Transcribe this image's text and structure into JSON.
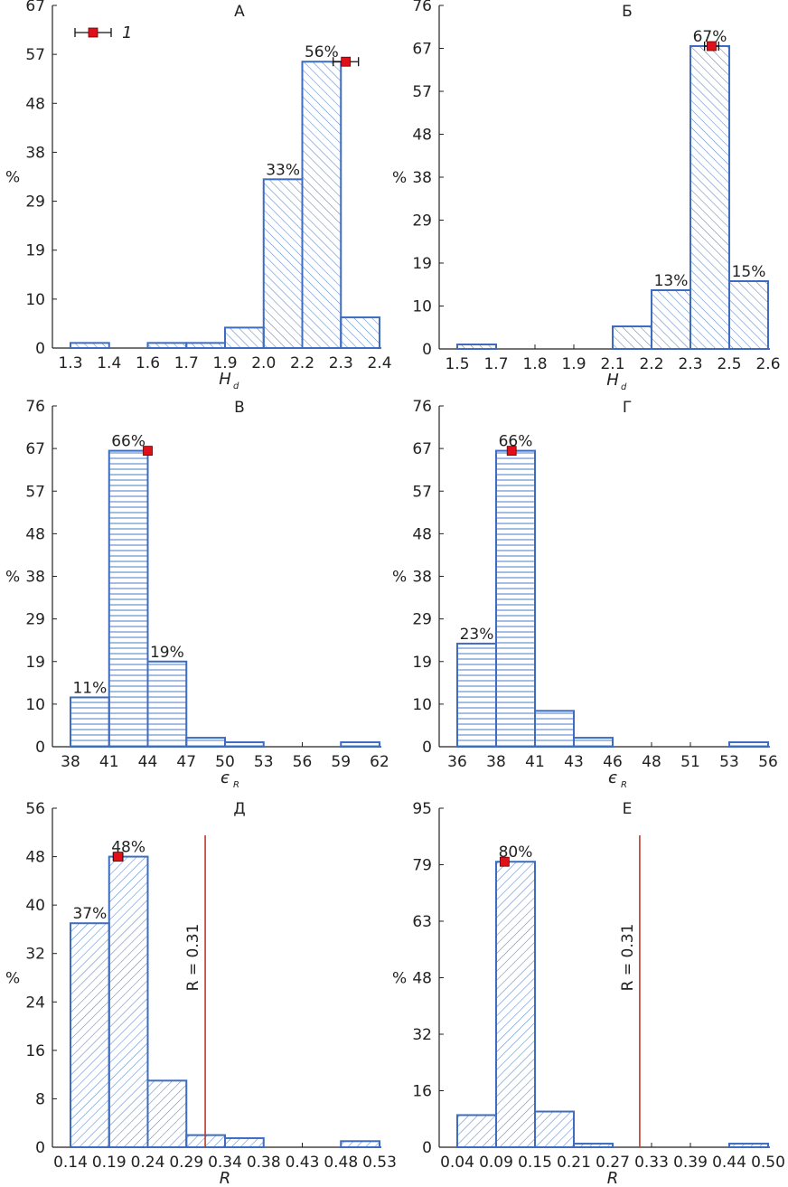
{
  "chart_data": [
    {
      "type": "bar",
      "title": "А",
      "ylabel": "%",
      "xlabel": "H",
      "xlabel_sub": "d",
      "yticks": [
        "0",
        "10",
        "19",
        "29",
        "38",
        "48",
        "57",
        "67"
      ],
      "ylim": [
        0,
        67
      ],
      "xticks": [
        "1.3",
        "1.4",
        "1.6",
        "1.7",
        "1.9",
        "2.0",
        "2.2",
        "2.3",
        "2.4"
      ],
      "values": [
        1,
        0,
        1,
        1,
        4,
        33,
        56,
        6
      ],
      "value_labels": [
        "",
        "",
        "",
        "",
        "",
        "33%",
        "56%",
        ""
      ],
      "pattern": "diag",
      "marker": {
        "x": 2.28,
        "y": 56,
        "xerr": 0.045
      },
      "legend": {
        "label": "1"
      }
    },
    {
      "type": "bar",
      "title": "Б",
      "ylabel": "%",
      "xlabel": "H",
      "xlabel_sub": "d",
      "yticks": [
        "0",
        "10",
        "19",
        "29",
        "38",
        "48",
        "57",
        "67",
        "76"
      ],
      "ylim": [
        0,
        76
      ],
      "xticks": [
        "1.5",
        "1.7",
        "1.8",
        "1.9",
        "2.1",
        "2.2",
        "2.3",
        "2.5",
        "2.6"
      ],
      "values": [
        1,
        0,
        0,
        0,
        5,
        13,
        67,
        15
      ],
      "value_labels": [
        "",
        "",
        "",
        "",
        "",
        "13%",
        "67%",
        "15%"
      ],
      "pattern": "diag",
      "marker": {
        "x": 2.4,
        "y": 67,
        "xerr": 0.025
      }
    },
    {
      "type": "bar",
      "title": "В",
      "ylabel": "%",
      "xlabel": "є",
      "xlabel_sub": "R",
      "yticks": [
        "0",
        "10",
        "19",
        "29",
        "38",
        "48",
        "57",
        "67",
        "76"
      ],
      "ylim": [
        0,
        76
      ],
      "xticks": [
        "38",
        "41",
        "44",
        "47",
        "50",
        "53",
        "56",
        "59",
        "62"
      ],
      "values": [
        11,
        66,
        19,
        2,
        1,
        0,
        0,
        1
      ],
      "value_labels": [
        "11%",
        "66%",
        "19%",
        "",
        "",
        "",
        "",
        ""
      ],
      "pattern": "horiz",
      "marker": {
        "x": 44,
        "y": 66,
        "xerr": 0.3
      }
    },
    {
      "type": "bar",
      "title": "Г",
      "ylabel": "%",
      "xlabel": "є",
      "xlabel_sub": "R",
      "yticks": [
        "0",
        "10",
        "19",
        "29",
        "38",
        "48",
        "57",
        "67",
        "76"
      ],
      "ylim": [
        0,
        76
      ],
      "xticks": [
        "36",
        "38",
        "41",
        "43",
        "46",
        "48",
        "51",
        "53",
        "56"
      ],
      "values": [
        23,
        66,
        8,
        2,
        0,
        0,
        0,
        1
      ],
      "value_labels": [
        "23%",
        "66%",
        "",
        "",
        "",
        "",
        "",
        ""
      ],
      "pattern": "horiz",
      "marker": {
        "x": 39.5,
        "y": 66,
        "xerr": 0.2
      }
    },
    {
      "type": "bar",
      "title": "Д",
      "ylabel": "%",
      "xlabel": "R",
      "yticks": [
        "0",
        "8",
        "16",
        "24",
        "32",
        "40",
        "48",
        "56"
      ],
      "ylim": [
        0,
        56
      ],
      "xticks": [
        "0.14",
        "0.19",
        "0.24",
        "0.29",
        "0.34",
        "0.38",
        "0.43",
        "0.48",
        "0.53"
      ],
      "values": [
        37,
        48,
        11,
        2,
        1.5,
        0,
        0,
        1
      ],
      "value_labels": [
        "37%",
        "48%",
        "",
        "",
        "",
        "",
        "",
        ""
      ],
      "pattern": "diag-back",
      "marker": {
        "x": 0.2,
        "y": 48,
        "xerr": 0.006
      },
      "reference_line": {
        "x": 0.31,
        "label": "R = 0.31"
      }
    },
    {
      "type": "bar",
      "title": "Е",
      "ylabel": "%",
      "xlabel": "R",
      "yticks": [
        "0",
        "16",
        "32",
        "48",
        "63",
        "79",
        "95"
      ],
      "ylim": [
        0,
        95
      ],
      "xticks": [
        "0.04",
        "0.09",
        "0.15",
        "0.21",
        "0.27",
        "0.33",
        "0.39",
        "0.44",
        "0.50"
      ],
      "values": [
        9,
        80,
        10,
        1,
        0,
        0,
        0,
        1
      ],
      "value_labels": [
        "",
        "80%",
        "",
        "",
        "",
        "",
        "",
        ""
      ],
      "pattern": "diag-back",
      "marker": {
        "x": 0.11,
        "y": 80,
        "xerr": 0.006
      },
      "reference_line": {
        "x": 0.31,
        "label": "R = 0.31"
      }
    }
  ],
  "colors": {
    "bar_stroke": "#3d6cc0",
    "hatch": "#5a86cc",
    "marker_fill": "#e0101a",
    "ref_line": "#c0392b",
    "axis": "#222222"
  }
}
